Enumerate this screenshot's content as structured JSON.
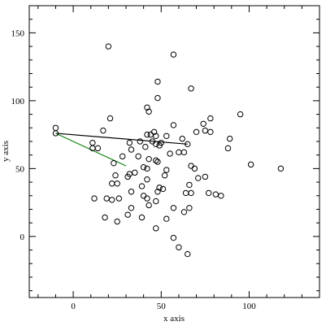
{
  "chart_data": {
    "type": "scatter",
    "title": "",
    "xlabel": "x axis",
    "ylabel": "y axis",
    "xlim": [
      -25,
      140
    ],
    "ylim": [
      -45,
      170
    ],
    "grid": false,
    "x_ticks": [
      0,
      50,
      100
    ],
    "y_ticks": [
      0,
      50,
      100,
      150
    ],
    "colors": {
      "axes": "#000000",
      "points": "#000000",
      "line_black": "#000000",
      "line_green": "#228b22"
    },
    "points": [
      {
        "x": 20,
        "y": 140
      },
      {
        "x": 57,
        "y": 134
      },
      {
        "x": 48,
        "y": 114
      },
      {
        "x": 67,
        "y": 109
      },
      {
        "x": 48,
        "y": 102
      },
      {
        "x": 42,
        "y": 95
      },
      {
        "x": 43,
        "y": 92
      },
      {
        "x": 95,
        "y": 90
      },
      {
        "x": 78,
        "y": 87
      },
      {
        "x": 21,
        "y": 87
      },
      {
        "x": 74,
        "y": 83
      },
      {
        "x": 57,
        "y": 82
      },
      {
        "x": 17,
        "y": 78
      },
      {
        "x": 75,
        "y": 78
      },
      {
        "x": 70,
        "y": 77
      },
      {
        "x": 78,
        "y": 77
      },
      {
        "x": -10,
        "y": 80
      },
      {
        "x": 46,
        "y": 77
      },
      {
        "x": 42,
        "y": 75
      },
      {
        "x": 44,
        "y": 75
      },
      {
        "x": 53,
        "y": 74
      },
      {
        "x": 47,
        "y": 74
      },
      {
        "x": 62,
        "y": 72
      },
      {
        "x": 89,
        "y": 72
      },
      {
        "x": 38,
        "y": 70
      },
      {
        "x": 45,
        "y": 70
      },
      {
        "x": 50,
        "y": 69
      },
      {
        "x": 32,
        "y": 69
      },
      {
        "x": 47,
        "y": 68
      },
      {
        "x": 65,
        "y": 68
      },
      {
        "x": 11,
        "y": 69
      },
      {
        "x": 49,
        "y": 67
      },
      {
        "x": 41,
        "y": 66
      },
      {
        "x": 14,
        "y": 65
      },
      {
        "x": 11,
        "y": 65
      },
      {
        "x": 33,
        "y": 64
      },
      {
        "x": 88,
        "y": 65
      },
      {
        "x": 60,
        "y": 62
      },
      {
        "x": 63,
        "y": 62
      },
      {
        "x": 55,
        "y": 61
      },
      {
        "x": 28,
        "y": 59
      },
      {
        "x": 37,
        "y": 59
      },
      {
        "x": 43,
        "y": 57
      },
      {
        "x": 47,
        "y": 56
      },
      {
        "x": 48,
        "y": 55
      },
      {
        "x": 101,
        "y": 53
      },
      {
        "x": 23,
        "y": 54
      },
      {
        "x": 67,
        "y": 52
      },
      {
        "x": 40,
        "y": 51
      },
      {
        "x": 118,
        "y": 50
      },
      {
        "x": 42,
        "y": 50
      },
      {
        "x": 53,
        "y": 49
      },
      {
        "x": 69,
        "y": 50
      },
      {
        "x": 35,
        "y": 47
      },
      {
        "x": 32,
        "y": 46
      },
      {
        "x": 31,
        "y": 44
      },
      {
        "x": 52,
        "y": 45
      },
      {
        "x": 24,
        "y": 45
      },
      {
        "x": 75,
        "y": 44
      },
      {
        "x": 71,
        "y": 43
      },
      {
        "x": 42,
        "y": 42
      },
      {
        "x": 66,
        "y": 38
      },
      {
        "x": 22,
        "y": 39
      },
      {
        "x": 25,
        "y": 39
      },
      {
        "x": 39,
        "y": 37
      },
      {
        "x": 49,
        "y": 36
      },
      {
        "x": 51,
        "y": 35
      },
      {
        "x": 48,
        "y": 33
      },
      {
        "x": 33,
        "y": 33
      },
      {
        "x": 77,
        "y": 32
      },
      {
        "x": 64,
        "y": 32
      },
      {
        "x": 67,
        "y": 32
      },
      {
        "x": 81,
        "y": 31
      },
      {
        "x": 84,
        "y": 30
      },
      {
        "x": 40,
        "y": 30
      },
      {
        "x": 42,
        "y": 28
      },
      {
        "x": 12,
        "y": 28
      },
      {
        "x": 19,
        "y": 28
      },
      {
        "x": 26,
        "y": 28
      },
      {
        "x": 47,
        "y": 26
      },
      {
        "x": 22,
        "y": 27
      },
      {
        "x": 43,
        "y": 23
      },
      {
        "x": 57,
        "y": 21
      },
      {
        "x": 33,
        "y": 21
      },
      {
        "x": 66,
        "y": 21
      },
      {
        "x": 63,
        "y": 18
      },
      {
        "x": 31,
        "y": 16
      },
      {
        "x": 18,
        "y": 14
      },
      {
        "x": 39,
        "y": 14
      },
      {
        "x": 53,
        "y": 13
      },
      {
        "x": 25,
        "y": 11
      },
      {
        "x": 47,
        "y": 6
      },
      {
        "x": 57,
        "y": -1
      },
      {
        "x": 60,
        "y": -8
      },
      {
        "x": 65,
        "y": -13
      },
      {
        "x": -10,
        "y": 76
      }
    ],
    "lines": [
      {
        "color": "black",
        "from": [
          -10,
          76
        ],
        "to": [
          65,
          68
        ]
      },
      {
        "color": "green",
        "from": [
          -10,
          76
        ],
        "to": [
          30,
          52
        ]
      }
    ]
  }
}
